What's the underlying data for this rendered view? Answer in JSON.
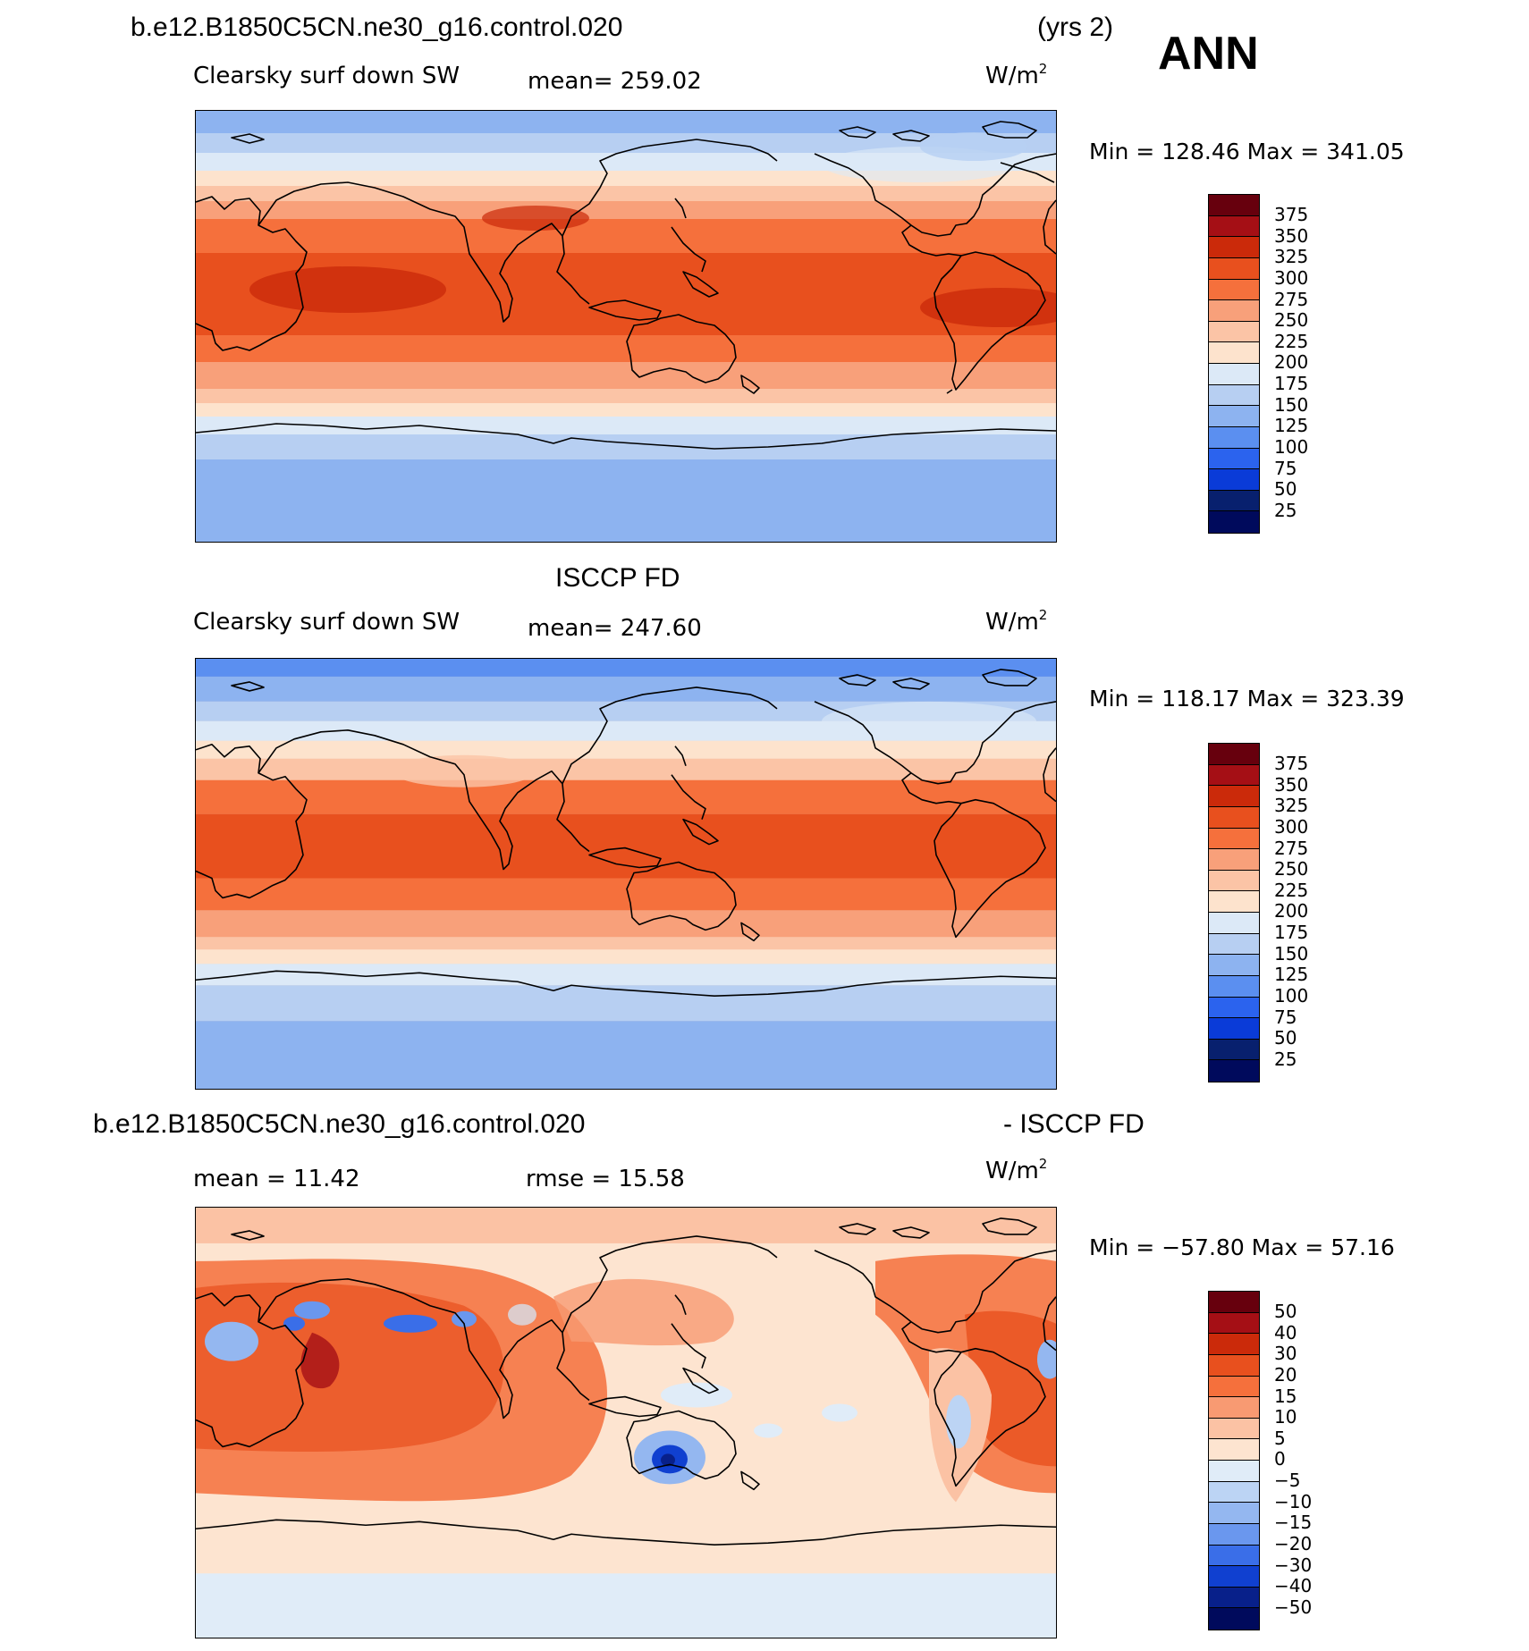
{
  "header": {
    "case_name": "b.e12.B1850C5CN.ne30_g16.control.020",
    "years": "(yrs 2)",
    "season": "ANN"
  },
  "panels": [
    {
      "title": "",
      "label": "Clearsky surf down SW",
      "stat": "mean= 259.02",
      "units": "W/m",
      "units_sup": "2",
      "minmax": "Min = 128.46 Max = 341.05",
      "colorbar_levels": [
        "375",
        "350",
        "325",
        "300",
        "275",
        "250",
        "225",
        "200",
        "175",
        "150",
        "125",
        "100",
        "75",
        "50",
        "25"
      ]
    },
    {
      "title": "ISCCP FD",
      "label": "Clearsky surf down SW",
      "stat": "mean= 247.60",
      "units": "W/m",
      "units_sup": "2",
      "minmax": "Min = 118.17 Max = 323.39",
      "colorbar_levels": [
        "375",
        "350",
        "325",
        "300",
        "275",
        "250",
        "225",
        "200",
        "175",
        "150",
        "125",
        "100",
        "75",
        "50",
        "25"
      ]
    },
    {
      "title_left": "b.e12.B1850C5CN.ne30_g16.control.020",
      "title_right": "- ISCCP FD",
      "stat_mean": "mean =   11.42",
      "stat_rmse": "rmse =   15.58",
      "units": "W/m",
      "units_sup": "2",
      "minmax": "Min = −57.80 Max =   57.16",
      "colorbar_levels": [
        "50",
        "40",
        "30",
        "20",
        "15",
        "10",
        "5",
        "0",
        "−5",
        "−10",
        "−15",
        "−20",
        "−30",
        "−40",
        "−50"
      ]
    }
  ],
  "colors": {
    "abs_scale": [
      "#67000d",
      "#a50f15",
      "#cb2a0a",
      "#e8501e",
      "#f5703c",
      "#f8a07a",
      "#fbc4a6",
      "#fde3cd",
      "#dce9f7",
      "#b7cff2",
      "#8db3f0",
      "#5b8ff0",
      "#2b63ee",
      "#0a3bd8",
      "#08206e",
      "#000a5c"
    ],
    "diff_scale": [
      "#67000d",
      "#a50f15",
      "#cb2a0a",
      "#e8501e",
      "#f5703c",
      "#f89a72",
      "#fbc2a4",
      "#fde4d0",
      "#e0ecf8",
      "#bcd4f4",
      "#94b7f0",
      "#6a97ee",
      "#3a6ee8",
      "#1040d0",
      "#08208a",
      "#000a5c"
    ]
  }
}
